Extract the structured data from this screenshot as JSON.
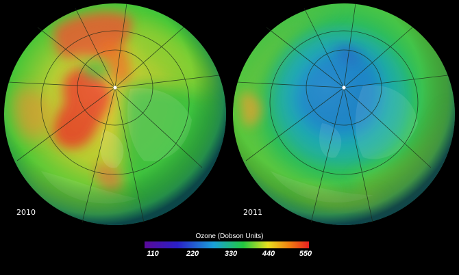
{
  "maps": [
    {
      "year": "2010",
      "theme": "high-ozone",
      "pole_marker": "north-pole-dot"
    },
    {
      "year": "2011",
      "theme": "low-ozone",
      "pole_marker": "north-pole-dot"
    }
  ],
  "legend": {
    "title": "Ozone (Dobson Units)",
    "ticks": [
      "110",
      "220",
      "330",
      "440",
      "550"
    ],
    "colors": [
      "#5a0a9a",
      "#2a1fc8",
      "#1aa0d8",
      "#22c840",
      "#e8e020",
      "#f08010",
      "#e82020"
    ]
  },
  "palette": {
    "background": "#000000",
    "graticule": "#1a2a1a"
  }
}
